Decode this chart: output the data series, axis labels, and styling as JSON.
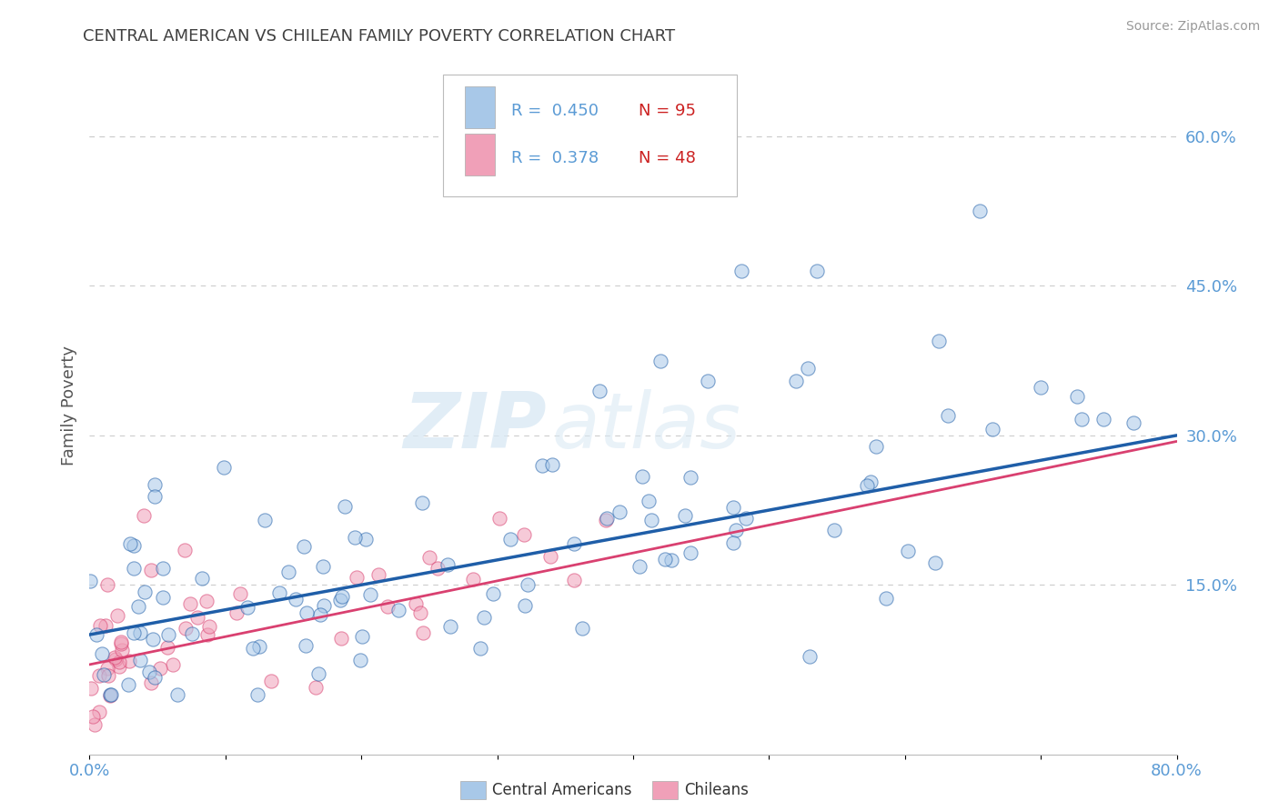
{
  "title": "CENTRAL AMERICAN VS CHILEAN FAMILY POVERTY CORRELATION CHART",
  "source": "Source: ZipAtlas.com",
  "ylabel": "Family Poverty",
  "xlim": [
    0.0,
    0.8
  ],
  "ylim": [
    -0.02,
    0.68
  ],
  "yticks_right": [
    0.15,
    0.3,
    0.45,
    0.6
  ],
  "ytick_right_labels": [
    "15.0%",
    "30.0%",
    "45.0%",
    "60.0%"
  ],
  "blue_color": "#A8C8E8",
  "pink_color": "#F0A0B8",
  "blue_line_color": "#1F5EA8",
  "pink_line_color": "#D94070",
  "axis_label_color": "#5B9BD5",
  "title_color": "#404040",
  "watermark_zip": "ZIP",
  "watermark_atlas": "atlas",
  "grid_color": "#CCCCCC",
  "background_color": "#FFFFFF",
  "ca_slope": 0.25,
  "ca_intercept": 0.1,
  "ch_slope": 0.28,
  "ch_intercept": 0.07,
  "legend_r1": "R = 0.450",
  "legend_n1": "N = 95",
  "legend_r2": "R = 0.378",
  "legend_n2": "N = 48"
}
